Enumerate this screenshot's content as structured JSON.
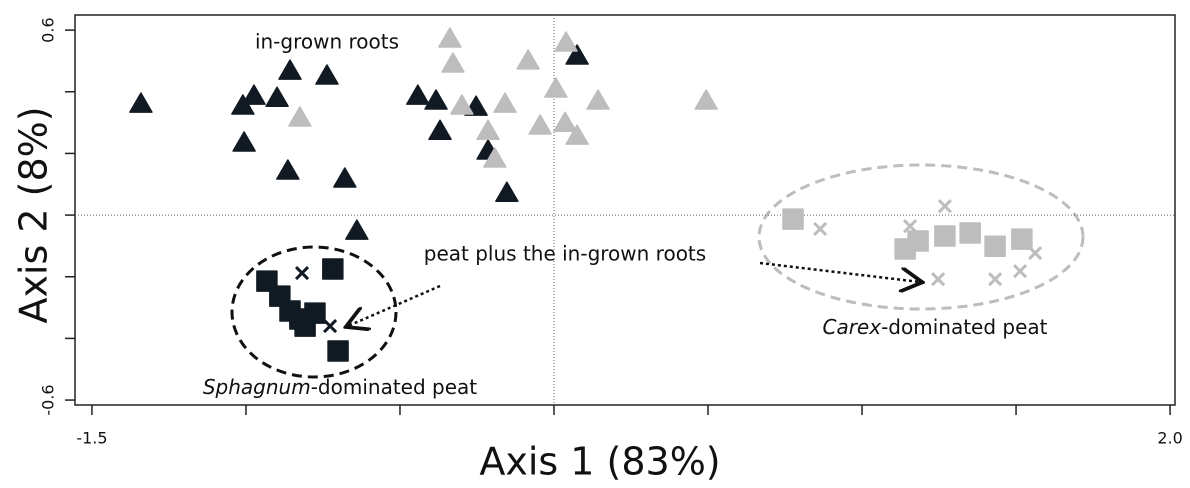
{
  "chart_data": {
    "type": "scatter",
    "xlabel": "Axis 1 (83%)",
    "ylabel": "Axis 2 (8%)",
    "xlim": [
      -1.555,
      2.016
    ],
    "ylim": [
      -0.616,
      0.649
    ],
    "xticks": [
      -1.5,
      {
        "value": 2.0,
        "label": "2.0"
      }
    ],
    "xminor_ticks": [
      -1.0,
      -0.5,
      0,
      0.5,
      1.0,
      1.5
    ],
    "yticks": [
      0.6,
      -0.6
    ],
    "yminor_ticks": [
      0.4,
      0.2,
      0,
      -0.2,
      -0.4
    ],
    "zero_lines": true,
    "series": [
      {
        "marker": "triangle",
        "color": "#111a22",
        "x": [
          -1.341,
          -0.857,
          -0.737,
          -0.974,
          -1.01,
          -0.899,
          -1.006,
          -0.864,
          -0.679,
          -0.64,
          -0.442,
          -0.383,
          -0.37,
          -0.253,
          -0.214,
          -0.153,
          0.075
        ],
        "values": [
          0.36,
          0.467,
          0.451,
          0.386,
          0.354,
          0.379,
          0.234,
          0.143,
          0.117,
          -0.052,
          0.386,
          0.37,
          0.272,
          0.35,
          0.208,
          0.071,
          0.516
        ]
      },
      {
        "marker": "triangle",
        "color": "#bdbdbd",
        "x": [
          -0.338,
          -0.328,
          -0.084,
          0.039,
          0.143,
          0.494,
          0.006,
          -0.159,
          -0.299,
          -0.825,
          -0.214,
          -0.192,
          -0.045,
          0.036,
          0.075
        ],
        "values": [
          0.571,
          0.49,
          0.5,
          0.558,
          0.37,
          0.37,
          0.409,
          0.36,
          0.354,
          0.315,
          0.272,
          0.182,
          0.289,
          0.298,
          0.256
        ]
      },
      {
        "marker": "square",
        "color": "#111a22",
        "x": [
          -0.718,
          -0.932,
          -0.89,
          -0.857,
          -0.825,
          -0.776,
          -0.701,
          -0.808
        ],
        "values": [
          -0.175,
          -0.214,
          -0.263,
          -0.311,
          -0.337,
          -0.318,
          -0.441,
          -0.36
        ]
      },
      {
        "marker": "cross",
        "color": "#111a22",
        "x": [
          -0.818,
          -0.727
        ],
        "values": [
          -0.188,
          -0.36
        ]
      },
      {
        "marker": "square",
        "color": "#bdbdbd",
        "x": [
          0.776,
          1.14,
          1.182,
          1.269,
          1.351,
          1.432,
          1.519
        ],
        "values": [
          -0.013,
          -0.11,
          -0.084,
          -0.068,
          -0.058,
          -0.101,
          -0.078
        ]
      },
      {
        "marker": "cross",
        "color": "#bdbdbd",
        "x": [
          0.864,
          1.269,
          1.156,
          1.247,
          1.432,
          1.513,
          1.562
        ],
        "values": [
          -0.045,
          0.029,
          -0.036,
          -0.208,
          -0.208,
          -0.182,
          -0.123
        ]
      }
    ],
    "annotations": [
      {
        "text": "in-grown roots"
      },
      {
        "text": "peat plus the in-grown roots"
      },
      {
        "italic": "Sphagnum",
        "text": "-dominated peat"
      },
      {
        "italic": "Carex",
        "text": "-dominated peat"
      }
    ]
  }
}
